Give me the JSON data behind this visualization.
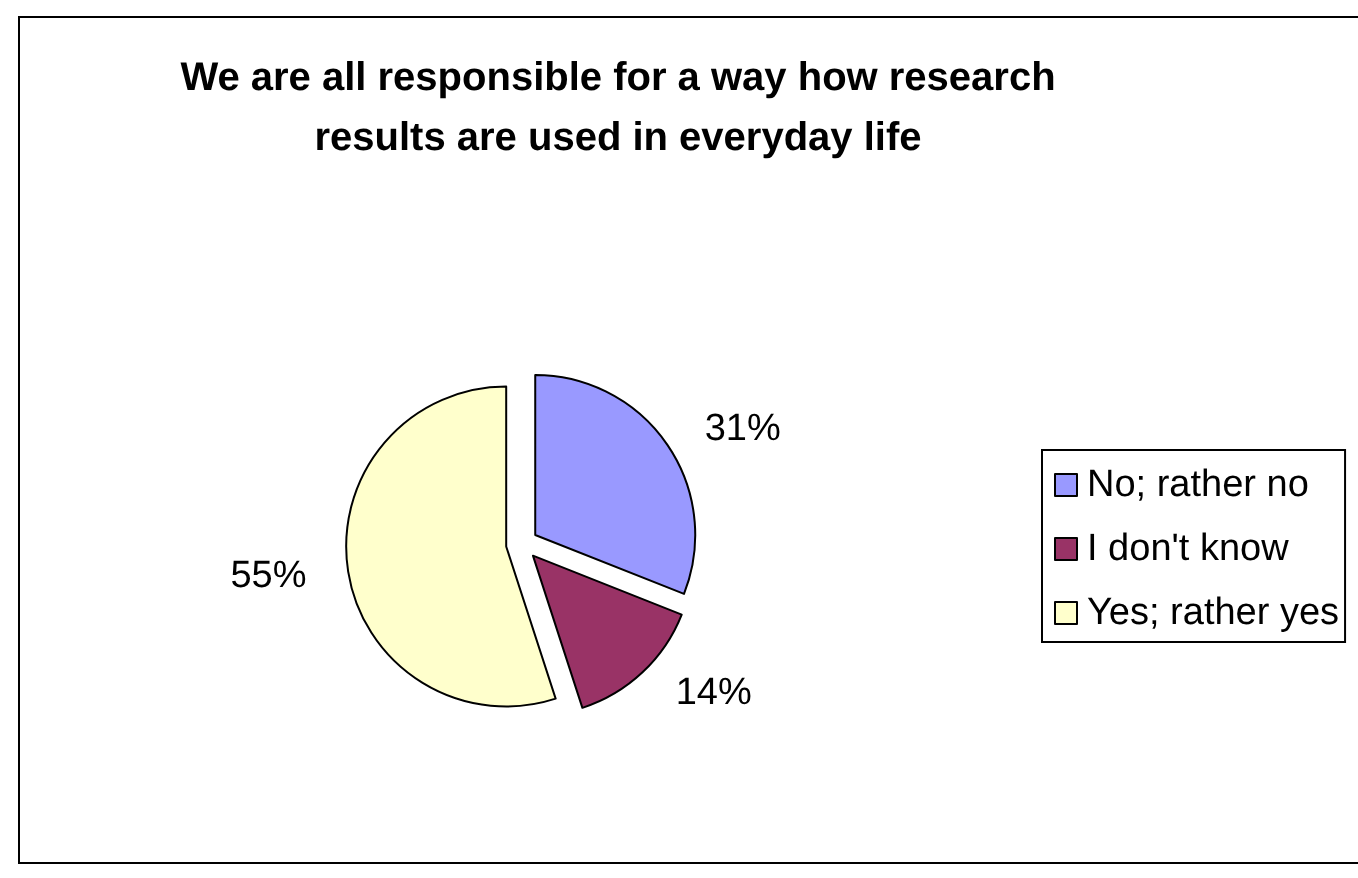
{
  "chart_data": {
    "type": "pie",
    "title": "We are all responsible for a way how research results are used in everyday life",
    "categories": [
      "No; rather no",
      "I don't know",
      "Yes; rather yes"
    ],
    "values": [
      31,
      14,
      55
    ],
    "colors": [
      "#9999ff",
      "#993366",
      "#ffffcc"
    ],
    "value_labels": [
      "31%",
      "14%",
      "55%"
    ],
    "legend": "right"
  }
}
